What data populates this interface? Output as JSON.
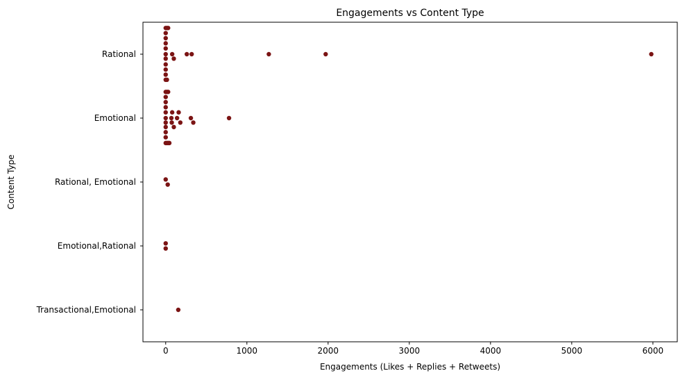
{
  "chart_data": {
    "type": "scatter",
    "title": "Engagements vs Content Type",
    "xlabel": "Engagements (Likes + Replies + Retweets)",
    "ylabel": "Content Type",
    "xlim": [
      -280,
      6300
    ],
    "xticks": [
      0,
      1000,
      2000,
      3000,
      4000,
      5000,
      6000
    ],
    "xtick_labels": [
      "0",
      "1000",
      "2000",
      "3000",
      "4000",
      "5000",
      "6000"
    ],
    "categories": [
      "Rational",
      "Emotional",
      "Rational, Emotional",
      "Emotional,Rational",
      "Transactional,Emotional"
    ],
    "grid": false,
    "marker_color": "#7b1414",
    "series": [
      {
        "category": "Rational",
        "points": [
          [
            0,
            -0.41
          ],
          [
            15,
            -0.41
          ],
          [
            30,
            -0.41
          ],
          [
            0,
            -0.33
          ],
          [
            0,
            -0.25
          ],
          [
            0,
            -0.17
          ],
          [
            0,
            -0.09
          ],
          [
            80,
            0.0
          ],
          [
            260,
            0.0
          ],
          [
            320,
            0.0
          ],
          [
            1270,
            0.0
          ],
          [
            1970,
            0.0
          ],
          [
            5980,
            0.0
          ],
          [
            0,
            0.0
          ],
          [
            100,
            0.07
          ],
          [
            0,
            0.07
          ],
          [
            0,
            0.16
          ],
          [
            0,
            0.24
          ],
          [
            0,
            0.32
          ],
          [
            0,
            0.4
          ],
          [
            15,
            0.4
          ]
        ]
      },
      {
        "category": "Emotional",
        "points": [
          [
            0,
            -0.41
          ],
          [
            15,
            -0.41
          ],
          [
            30,
            -0.41
          ],
          [
            0,
            -0.33
          ],
          [
            0,
            -0.25
          ],
          [
            0,
            -0.17
          ],
          [
            0,
            -0.09
          ],
          [
            80,
            -0.09
          ],
          [
            160,
            -0.09
          ],
          [
            0,
            0.0
          ],
          [
            70,
            0.0
          ],
          [
            140,
            0.0
          ],
          [
            310,
            0.0
          ],
          [
            780,
            0.0
          ],
          [
            0,
            0.07
          ],
          [
            75,
            0.07
          ],
          [
            180,
            0.07
          ],
          [
            340,
            0.07
          ],
          [
            0,
            0.14
          ],
          [
            100,
            0.14
          ],
          [
            0,
            0.22
          ],
          [
            0,
            0.3
          ],
          [
            0,
            0.39
          ],
          [
            15,
            0.39
          ],
          [
            30,
            0.39
          ],
          [
            45,
            0.39
          ]
        ]
      },
      {
        "category": "Rational, Emotional",
        "points": [
          [
            0,
            -0.04
          ],
          [
            25,
            0.04
          ]
        ]
      },
      {
        "category": "Emotional,Rational",
        "points": [
          [
            0,
            -0.04
          ],
          [
            0,
            0.04
          ]
        ]
      },
      {
        "category": "Transactional,Emotional",
        "points": [
          [
            155,
            0.0
          ]
        ]
      }
    ]
  }
}
